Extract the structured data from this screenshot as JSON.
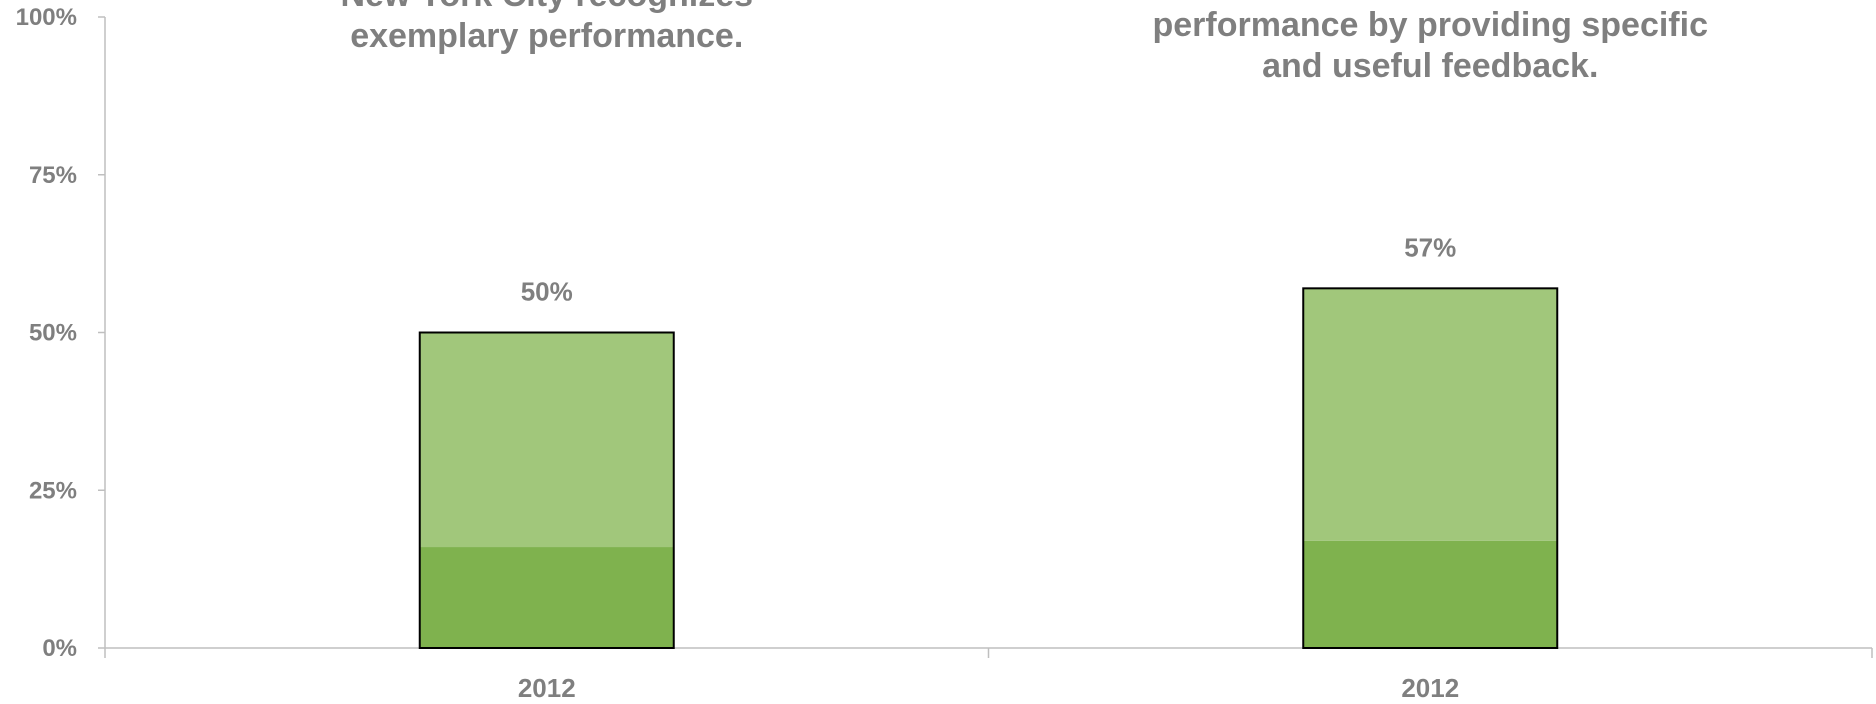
{
  "chart_data": {
    "type": "bar",
    "stacked": true,
    "ylim": [
      0,
      100
    ],
    "yticks": [
      "0%",
      "25%",
      "50%",
      "75%",
      "100%"
    ],
    "yticks_values": [
      0,
      25,
      50,
      75,
      100
    ],
    "grid": false,
    "panels": [
      {
        "title_lines": [
          "New York City recognizes",
          "exemplary performance."
        ],
        "category": "2012",
        "total_label": "50%",
        "segments": [
          {
            "value": 16,
            "color": "#7fb24e"
          },
          {
            "value": 34,
            "color": "#a1c77b"
          }
        ]
      },
      {
        "title_lines": [
          "performance by providing specific",
          "and useful feedback."
        ],
        "category": "2012",
        "total_label": "57%",
        "segments": [
          {
            "value": 17,
            "color": "#7fb24e"
          },
          {
            "value": 40,
            "color": "#a1c77b"
          }
        ]
      }
    ]
  }
}
